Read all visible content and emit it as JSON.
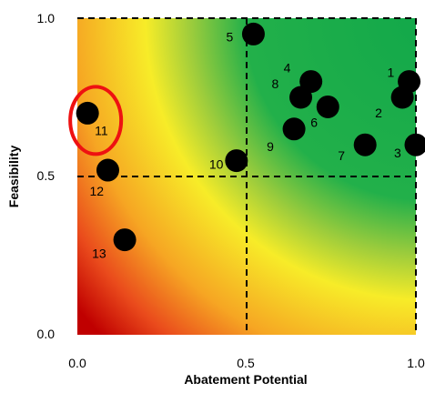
{
  "chart_data": {
    "type": "scatter",
    "xlabel": "Abatement Potential",
    "ylabel": "Feasibility",
    "xlim": [
      0,
      1
    ],
    "ylim": [
      0,
      1
    ],
    "x_ticks": [
      "0.0",
      "0.5",
      "1.0"
    ],
    "y_ticks": [
      "0.0",
      "0.5",
      "1.0"
    ],
    "grid": false,
    "reference_lines": [
      0.5,
      0.5
    ],
    "background": "red-to-green gradient from bottom-left to top-right",
    "colors": {
      "point": "#000000",
      "highlight": "#ee1111",
      "reference_line": "#000000",
      "gradient_low": "#c00000",
      "gradient_mid": "#f7ec28",
      "gradient_high": "#12a84a"
    },
    "points": [
      {
        "label": "1",
        "x": 0.98,
        "y": 0.8
      },
      {
        "label": "2",
        "x": 0.96,
        "y": 0.75
      },
      {
        "label": "3",
        "x": 1.0,
        "y": 0.6
      },
      {
        "label": "4",
        "x": 0.69,
        "y": 0.8
      },
      {
        "label": "5",
        "x": 0.52,
        "y": 0.95
      },
      {
        "label": "6",
        "x": 0.74,
        "y": 0.72
      },
      {
        "label": "7",
        "x": 0.85,
        "y": 0.6
      },
      {
        "label": "8",
        "x": 0.66,
        "y": 0.75
      },
      {
        "label": "9",
        "x": 0.64,
        "y": 0.65
      },
      {
        "label": "10",
        "x": 0.47,
        "y": 0.55
      },
      {
        "label": "11",
        "x": 0.03,
        "y": 0.7
      },
      {
        "label": "12",
        "x": 0.09,
        "y": 0.52
      },
      {
        "label": "13",
        "x": 0.14,
        "y": 0.3
      }
    ],
    "highlighted_point": "11"
  }
}
